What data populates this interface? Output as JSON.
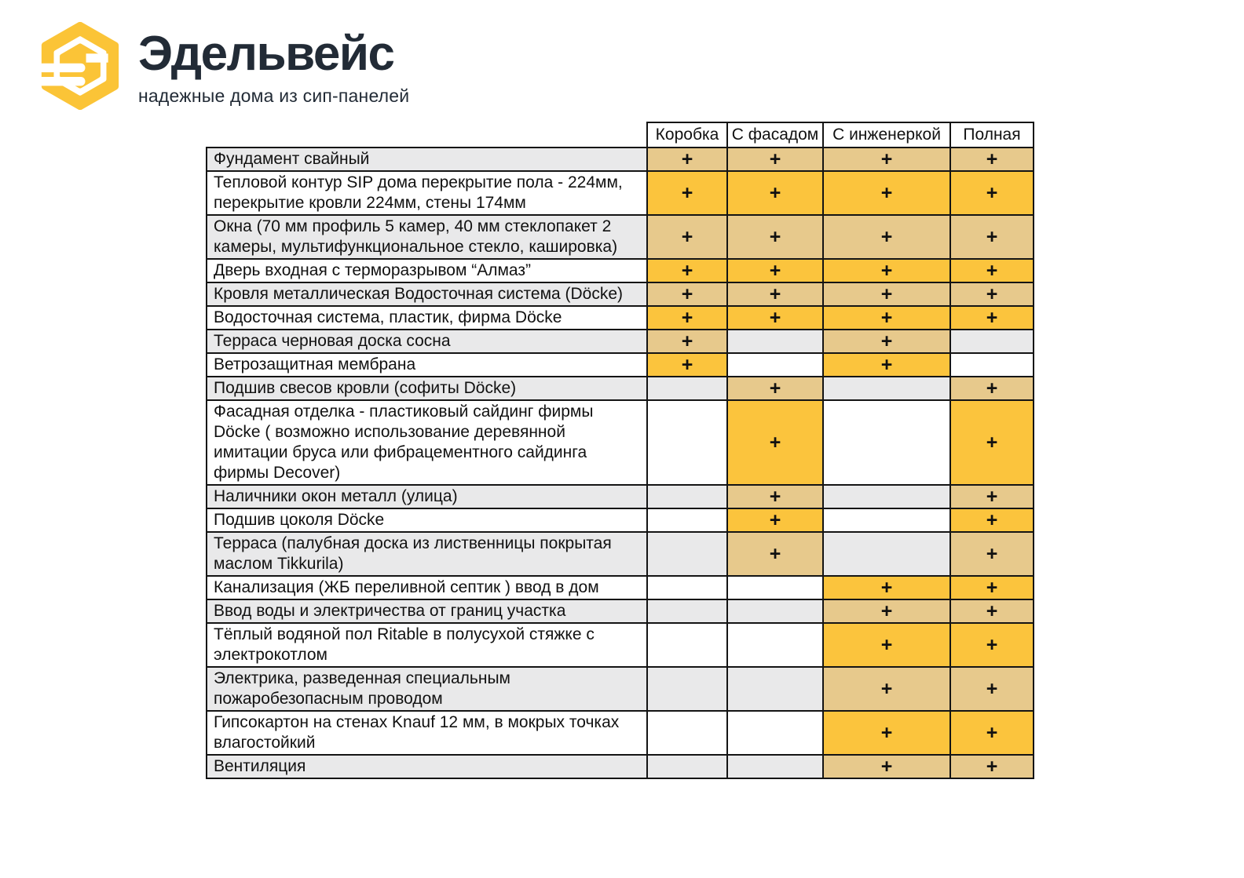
{
  "brand": {
    "name": "Эдельвейс",
    "tagline": "надежные дома из сип-панелей",
    "logo_icon": "hexagon-e-icon",
    "logo_color": "#FBC437",
    "text_color": "#222B36"
  },
  "colors": {
    "cell_yellow": "#FBC43D",
    "cell_tan": "#E7C98C",
    "row_stripe_gray": "#E9E9EA",
    "row_stripe_white": "#FFFFFF",
    "border": "#141414",
    "text": "#111111"
  },
  "table": {
    "plus_mark": "+",
    "columns": [
      "Коробка",
      "С фасадом",
      "С инженеркой",
      "Полная"
    ],
    "rows": [
      {
        "label": "Фундамент свайный",
        "values": [
          1,
          1,
          1,
          1
        ]
      },
      {
        "label": "Тепловой контур SIP дома перекрытие пола - 224мм, перекрытие кровли 224мм, стены 174мм",
        "values": [
          1,
          1,
          1,
          1
        ]
      },
      {
        "label": "Окна (70 мм профиль 5 камер, 40 мм стеклопакет 2 камеры, мультифункциональное стекло, кашировка)",
        "values": [
          1,
          1,
          1,
          1
        ]
      },
      {
        "label": "Дверь входная с терморазрывом “Алмаз”",
        "values": [
          1,
          1,
          1,
          1
        ]
      },
      {
        "label": "Кровля металлическая Водосточная система (Döcke)",
        "values": [
          1,
          1,
          1,
          1
        ]
      },
      {
        "label": "Водосточная система, пластик, фирма Döcke",
        "values": [
          1,
          1,
          1,
          1
        ]
      },
      {
        "label": "Терраса черновая доска сосна",
        "values": [
          1,
          0,
          1,
          0
        ]
      },
      {
        "label": "Ветрозащитная мембрана",
        "values": [
          1,
          0,
          1,
          0
        ]
      },
      {
        "label": "Подшив свесов кровли (софиты Döcke)",
        "values": [
          0,
          1,
          0,
          1
        ]
      },
      {
        "label": "Фасадная отделка - пластиковый сайдинг фирмы Döcke ( возможно использование деревянной имитации бруса или фибрацементного сайдинга фирмы  Decover)",
        "values": [
          0,
          1,
          0,
          1
        ]
      },
      {
        "label": "Наличники окон металл (улица)",
        "values": [
          0,
          1,
          0,
          1
        ]
      },
      {
        "label": "Подшив цоколя Döcke",
        "values": [
          0,
          1,
          0,
          1
        ]
      },
      {
        "label": "Терраса (палубная доска из лиственницы покрытая маслом Tikkurila)",
        "values": [
          0,
          1,
          0,
          1
        ]
      },
      {
        "label": "Канализация (ЖБ переливной септик ) ввод в дом",
        "values": [
          0,
          0,
          1,
          1
        ]
      },
      {
        "label": "Ввод воды и электричества от границ участка",
        "values": [
          0,
          0,
          1,
          1
        ]
      },
      {
        "label": "Тёплый водяной пол Ritable в полусухой стяжке с электрокотлом",
        "values": [
          0,
          0,
          1,
          1
        ]
      },
      {
        "label": "Электрика, разведенная специальным пожаробезопасным проводом",
        "values": [
          0,
          0,
          1,
          1
        ]
      },
      {
        "label": "Гипсокартон на стенах Knauf 12 мм, в мокрых точках влагостойкий",
        "values": [
          0,
          0,
          1,
          1
        ]
      },
      {
        "label": "Вентиляция",
        "values": [
          0,
          0,
          1,
          1
        ]
      }
    ]
  }
}
